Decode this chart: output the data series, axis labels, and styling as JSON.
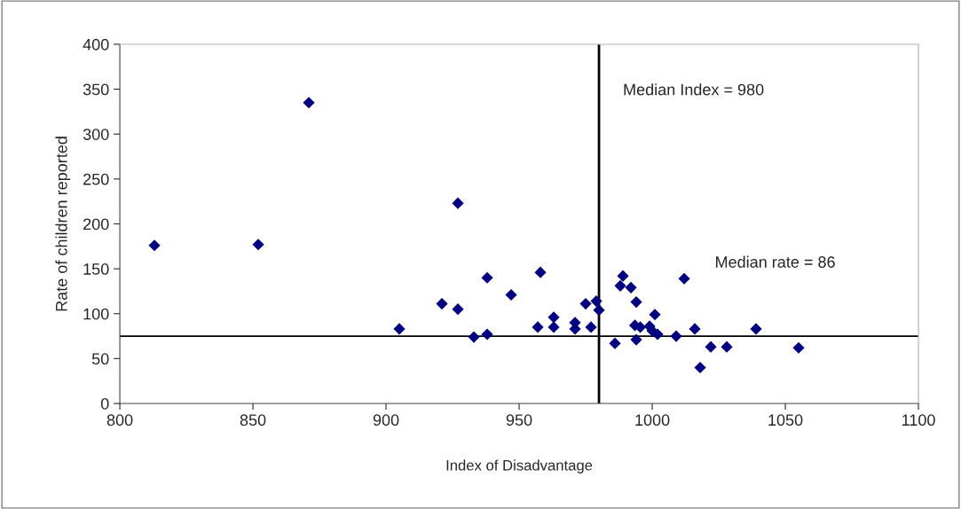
{
  "chart_data": {
    "type": "scatter",
    "xlabel": "Index of Disadvantage",
    "ylabel": "Rate of children reported",
    "x": [
      813,
      852,
      871,
      905,
      921,
      927,
      927,
      933,
      938,
      938,
      947,
      957,
      958,
      963,
      963,
      971,
      971,
      977,
      975,
      979,
      980,
      986,
      989,
      988,
      992,
      994,
      993.5,
      995.5,
      994,
      999,
      1001,
      1000,
      1002,
      1012,
      1009,
      1016,
      1022,
      1028,
      1018,
      1039,
      1055
    ],
    "series": [
      {
        "color": "#000080",
        "values": [
          176,
          177,
          335,
          83,
          111,
          105,
          223,
          74,
          77,
          140,
          121,
          85,
          146,
          85,
          96,
          90,
          83,
          85,
          111,
          114,
          104,
          67,
          142,
          131,
          129,
          113,
          87,
          85,
          71,
          86,
          99,
          81,
          77,
          139,
          75,
          83,
          63,
          63,
          40,
          83,
          62
        ]
      }
    ],
    "xlim": [
      800,
      1100
    ],
    "xticks": [
      800,
      850,
      900,
      950,
      1000,
      1050,
      1100
    ],
    "ylim": [
      0,
      400
    ],
    "yticks": [
      0,
      50,
      100,
      150,
      200,
      250,
      300,
      350,
      400
    ],
    "marker": "diamond",
    "grid": false,
    "legend": false,
    "annotations": [
      "Median Index = 980",
      "Median rate = 86"
    ],
    "ref_lines": [
      {
        "axis": "x",
        "value": 980,
        "color": "#000000"
      },
      {
        "axis": "y",
        "value": 75,
        "color": "#000000"
      }
    ]
  }
}
